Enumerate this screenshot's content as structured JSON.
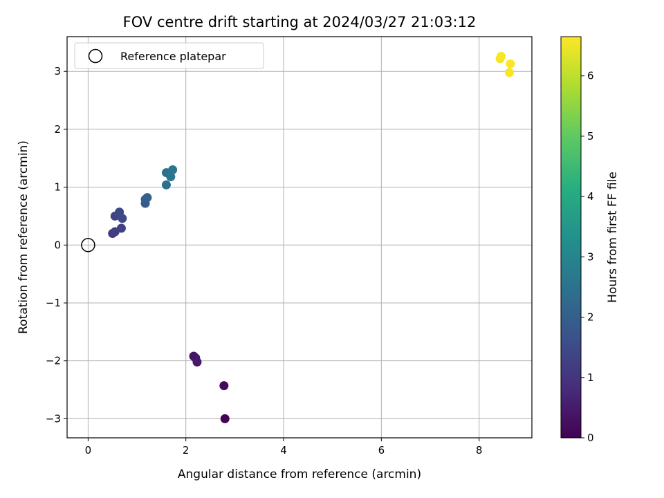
{
  "chart_data": {
    "type": "scatter",
    "title": "FOV centre drift starting at 2024/03/27 21:03:12",
    "xlabel": "Angular distance from reference (arcmin)",
    "ylabel": "Rotation from reference (arcmin)",
    "xlim": [
      -0.43,
      9.08
    ],
    "ylim": [
      -3.33,
      3.6
    ],
    "xticks": [
      0,
      2,
      4,
      6,
      8
    ],
    "yticks": [
      -3,
      -2,
      -1,
      0,
      1,
      2,
      3
    ],
    "xtick_labels": [
      "0",
      "2",
      "4",
      "6",
      "8"
    ],
    "ytick_labels": [
      "−3",
      "−2",
      "−1",
      "0",
      "1",
      "2",
      "3"
    ],
    "grid": true,
    "legend": {
      "placement": "upper-left",
      "entries": [
        {
          "label": "Reference platepar",
          "marker": "open-circle",
          "color": "#000000"
        }
      ]
    },
    "reference_point": {
      "x": 0,
      "y": 0
    },
    "colorbar": {
      "label": "Hours from first FF file",
      "colormap": "viridis",
      "range": [
        0,
        6.65
      ],
      "ticks": [
        0,
        1,
        2,
        3,
        4,
        5,
        6
      ],
      "tick_labels": [
        "0",
        "1",
        "2",
        "3",
        "4",
        "5",
        "6"
      ]
    },
    "points": [
      {
        "x": 2.8,
        "y": -3.0,
        "hours": 0.05
      },
      {
        "x": 2.78,
        "y": -2.43,
        "hours": 0.15
      },
      {
        "x": 2.16,
        "y": -1.92,
        "hours": 0.35
      },
      {
        "x": 2.2,
        "y": -1.95,
        "hours": 0.4
      },
      {
        "x": 2.23,
        "y": -2.02,
        "hours": 0.45
      },
      {
        "x": 0.5,
        "y": 0.2,
        "hours": 1.15
      },
      {
        "x": 0.55,
        "y": 0.23,
        "hours": 1.2
      },
      {
        "x": 0.68,
        "y": 0.29,
        "hours": 1.25
      },
      {
        "x": 0.55,
        "y": 0.5,
        "hours": 1.35
      },
      {
        "x": 0.64,
        "y": 0.57,
        "hours": 1.4
      },
      {
        "x": 0.7,
        "y": 0.46,
        "hours": 1.45
      },
      {
        "x": 1.17,
        "y": 0.72,
        "hours": 1.85
      },
      {
        "x": 1.17,
        "y": 0.79,
        "hours": 1.95
      },
      {
        "x": 1.21,
        "y": 0.82,
        "hours": 2.05
      },
      {
        "x": 1.6,
        "y": 1.04,
        "hours": 2.45
      },
      {
        "x": 1.6,
        "y": 1.25,
        "hours": 2.5
      },
      {
        "x": 1.69,
        "y": 1.18,
        "hours": 2.55
      },
      {
        "x": 1.73,
        "y": 1.3,
        "hours": 2.6
      },
      {
        "x": 8.43,
        "y": 3.22,
        "hours": 6.55
      },
      {
        "x": 8.45,
        "y": 3.26,
        "hours": 6.58
      },
      {
        "x": 8.62,
        "y": 2.98,
        "hours": 6.6
      },
      {
        "x": 8.64,
        "y": 3.13,
        "hours": 6.65
      }
    ]
  }
}
